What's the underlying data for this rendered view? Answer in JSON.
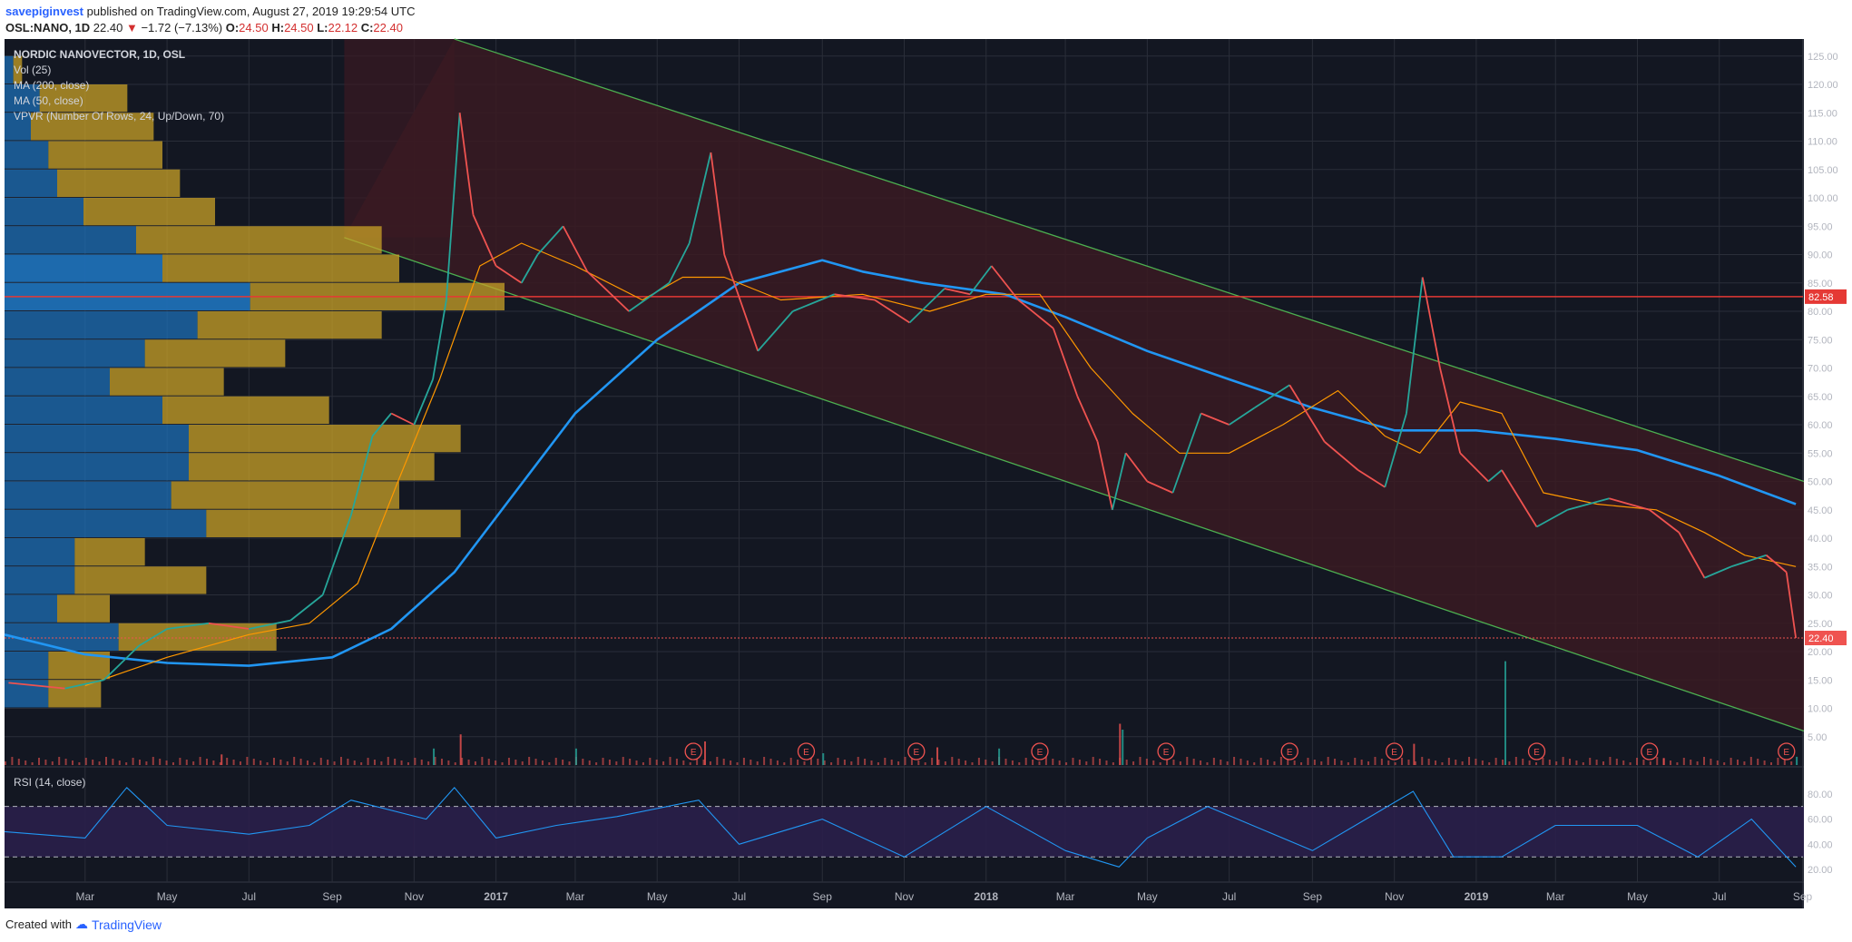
{
  "header": {
    "author": "savepiginvest",
    "published_text": "published on TradingView.com, August 27, 2019 19:29:54 UTC",
    "symbol": "OSL:NANO, 1D",
    "last": "22.40",
    "change": "−1.72 (−7.13%)",
    "o_label": "O:",
    "o_val": "24.50",
    "h_label": "H:",
    "h_val": "24.50",
    "l_label": "L:",
    "l_val": "22.12",
    "c_label": "C:",
    "c_val": "22.40"
  },
  "legend": {
    "title": "NORDIC NANOVECTOR, 1D, OSL",
    "items": [
      "Vol (25)",
      "MA (200, close)",
      "MA (50, close)",
      "VPVR (Number Of Rows, 24, Up/Down, 70)"
    ]
  },
  "rsi_label": "RSI (14, close)",
  "footer": {
    "created_with": "Created with",
    "brand": "TradingView"
  },
  "colors": {
    "background": "#131722",
    "grid": "#2a2e39",
    "channel_fill": "#3a1a22",
    "channel_line": "#4caf50",
    "ma200": "#2196f3",
    "ma50": "#ff9800",
    "up": "#26a69a",
    "down": "#ef5350",
    "support_line": "#e53935",
    "vpvr_up": "#1e6fb5",
    "vpvr_down": "#c9a227",
    "rsi_line": "#2196f3",
    "rsi_band": "#2a1f4a"
  },
  "chart_data": {
    "type": "line",
    "price_axis": {
      "ticks": [
        5,
        10,
        15,
        20,
        25,
        30,
        35,
        40,
        45,
        50,
        55,
        60,
        65,
        70,
        75,
        80,
        85,
        90,
        95,
        100,
        105,
        110,
        115,
        120,
        125
      ],
      "labels": [
        "5.00",
        "10.00",
        "15.00",
        "20.00",
        "25.00",
        "30.00",
        "35.00",
        "40.00",
        "45.00",
        "50.00",
        "55.00",
        "60.00",
        "65.00",
        "70.00",
        "75.00",
        "80.00",
        "85.00",
        "90.00",
        "95.00",
        "100.00",
        "105.00",
        "110.00",
        "115.00",
        "120.00",
        "125.00"
      ],
      "range": [
        0,
        128
      ]
    },
    "time_axis": {
      "labels": [
        "Mar",
        "May",
        "Jul",
        "Sep",
        "Nov",
        "2017",
        "Mar",
        "May",
        "Jul",
        "Sep",
        "Nov",
        "2018",
        "Mar",
        "May",
        "Jul",
        "Sep",
        "Nov",
        "2019",
        "Mar",
        "May",
        "Jul",
        "Sep"
      ],
      "dates": [
        "2016-03-01",
        "2016-05-01",
        "2016-07-01",
        "2016-09-01",
        "2016-11-01",
        "2017-01-01",
        "2017-03-01",
        "2017-05-01",
        "2017-07-01",
        "2017-09-01",
        "2017-11-01",
        "2018-01-01",
        "2018-03-01",
        "2018-05-01",
        "2018-07-01",
        "2018-09-01",
        "2018-11-01",
        "2019-01-01",
        "2019-03-01",
        "2019-05-01",
        "2019-07-01",
        "2019-09-01"
      ],
      "range": [
        "2016-01-01",
        "2019-09-02"
      ]
    },
    "price_close": {
      "dates": [
        "2016-01-04",
        "2016-02-15",
        "2016-03-15",
        "2016-04-10",
        "2016-05-01",
        "2016-06-01",
        "2016-07-01",
        "2016-08-01",
        "2016-08-25",
        "2016-09-15",
        "2016-10-01",
        "2016-10-15",
        "2016-11-01",
        "2016-11-15",
        "2016-11-25",
        "2016-12-05",
        "2016-12-15",
        "2017-01-01",
        "2017-01-20",
        "2017-02-01",
        "2017-02-20",
        "2017-03-10",
        "2017-04-10",
        "2017-05-10",
        "2017-05-25",
        "2017-06-10",
        "2017-06-20",
        "2017-07-15",
        "2017-08-10",
        "2017-09-10",
        "2017-10-10",
        "2017-11-05",
        "2017-12-01",
        "2017-12-20",
        "2018-01-05",
        "2018-01-25",
        "2018-02-20",
        "2018-03-10",
        "2018-03-25",
        "2018-04-05",
        "2018-04-15",
        "2018-05-01",
        "2018-05-20",
        "2018-06-10",
        "2018-07-01",
        "2018-07-20",
        "2018-08-15",
        "2018-09-10",
        "2018-10-05",
        "2018-10-25",
        "2018-11-10",
        "2018-11-22",
        "2018-12-05",
        "2018-12-20",
        "2019-01-10",
        "2019-01-20",
        "2019-02-15",
        "2019-03-10",
        "2019-04-10",
        "2019-05-10",
        "2019-06-01",
        "2019-06-20",
        "2019-07-10",
        "2019-08-05",
        "2019-08-20",
        "2019-08-27"
      ],
      "values": [
        14.5,
        13.5,
        15,
        21,
        24,
        25,
        24,
        25.5,
        30,
        44,
        58,
        62,
        60,
        68,
        82,
        115,
        97,
        88,
        85,
        90,
        95,
        87,
        80,
        85,
        92,
        108,
        90,
        73,
        80,
        83,
        82,
        78,
        84,
        83,
        88,
        82,
        77,
        65,
        57,
        45,
        55,
        50,
        48,
        62,
        60,
        63,
        67,
        57,
        52,
        49,
        62,
        86,
        70,
        55,
        50,
        52,
        42,
        45,
        47,
        45,
        41,
        33,
        35,
        37,
        34,
        22.4
      ]
    },
    "ma200": {
      "dates": [
        "2016-01-01",
        "2016-03-01",
        "2016-05-01",
        "2016-07-01",
        "2016-09-01",
        "2016-10-15",
        "2016-12-01",
        "2017-01-15",
        "2017-03-01",
        "2017-05-01",
        "2017-07-01",
        "2017-09-01",
        "2017-10-01",
        "2017-11-15",
        "2018-01-15",
        "2018-03-01",
        "2018-05-01",
        "2018-07-01",
        "2018-09-01",
        "2018-11-01",
        "2019-01-01",
        "2019-03-01",
        "2019-05-01",
        "2019-07-01",
        "2019-08-27"
      ],
      "values": [
        23,
        19.5,
        18,
        17.5,
        19,
        24,
        34,
        48,
        62,
        75,
        85,
        89,
        87,
        85,
        83,
        79,
        73,
        68,
        63,
        59,
        59,
        57.5,
        55.5,
        51,
        46
      ]
    },
    "ma50": {
      "dates": [
        "2016-03-01",
        "2016-05-01",
        "2016-07-01",
        "2016-08-15",
        "2016-09-20",
        "2016-10-20",
        "2016-11-20",
        "2016-12-20",
        "2017-01-20",
        "2017-03-01",
        "2017-04-20",
        "2017-05-20",
        "2017-06-20",
        "2017-08-01",
        "2017-10-01",
        "2017-11-20",
        "2018-01-01",
        "2018-02-10",
        "2018-03-20",
        "2018-04-20",
        "2018-05-25",
        "2018-07-01",
        "2018-08-10",
        "2018-09-20",
        "2018-10-25",
        "2018-11-20",
        "2018-12-20",
        "2019-01-20",
        "2019-02-20",
        "2019-04-01",
        "2019-05-15",
        "2019-06-20",
        "2019-07-20",
        "2019-08-27"
      ],
      "values": [
        14,
        19,
        23,
        25,
        32,
        50,
        68,
        88,
        92,
        88,
        82,
        86,
        86,
        82,
        83,
        80,
        83,
        83,
        70,
        62,
        55,
        55,
        60,
        66,
        58,
        55,
        64,
        62,
        48,
        46,
        45,
        41,
        37,
        35
      ]
    },
    "channel": {
      "upper": {
        "dates": [
          "2016-12-01",
          "2019-09-02"
        ],
        "values": [
          128,
          50
        ]
      },
      "lower": {
        "dates": [
          "2016-09-10",
          "2019-09-02"
        ],
        "values": [
          93,
          6
        ]
      }
    },
    "support_line": {
      "value": 82.58,
      "label": "82.58"
    },
    "last_price": {
      "value": 22.4,
      "label": "22.40"
    },
    "earnings_markers": [
      "2017-05-28",
      "2017-08-20",
      "2017-11-10",
      "2018-02-10",
      "2018-05-15",
      "2018-08-15",
      "2018-11-01",
      "2019-02-15",
      "2019-05-10",
      "2019-08-20"
    ],
    "earnings_label": "E",
    "vpvr": {
      "row_price_step": 5,
      "rows": [
        {
          "from": 125,
          "to": 130,
          "up": 0,
          "down": 0
        },
        {
          "from": 120,
          "to": 125,
          "up": 1,
          "down": 1
        },
        {
          "from": 115,
          "to": 120,
          "up": 4,
          "down": 10
        },
        {
          "from": 110,
          "to": 115,
          "up": 3,
          "down": 14
        },
        {
          "from": 105,
          "to": 110,
          "up": 5,
          "down": 13
        },
        {
          "from": 100,
          "to": 105,
          "up": 6,
          "down": 14
        },
        {
          "from": 95,
          "to": 100,
          "up": 9,
          "down": 15
        },
        {
          "from": 90,
          "to": 95,
          "up": 15,
          "down": 28
        },
        {
          "from": 85,
          "to": 90,
          "up": 18,
          "down": 27
        },
        {
          "from": 80,
          "to": 85,
          "up": 28,
          "down": 29
        },
        {
          "from": 75,
          "to": 80,
          "up": 22,
          "down": 21
        },
        {
          "from": 70,
          "to": 75,
          "up": 16,
          "down": 16
        },
        {
          "from": 65,
          "to": 70,
          "up": 12,
          "down": 13
        },
        {
          "from": 60,
          "to": 65,
          "up": 18,
          "down": 19
        },
        {
          "from": 55,
          "to": 60,
          "up": 21,
          "down": 31
        },
        {
          "from": 50,
          "to": 55,
          "up": 21,
          "down": 28
        },
        {
          "from": 45,
          "to": 50,
          "up": 19,
          "down": 26
        },
        {
          "from": 40,
          "to": 45,
          "up": 23,
          "down": 29
        },
        {
          "from": 35,
          "to": 40,
          "up": 8,
          "down": 8
        },
        {
          "from": 30,
          "to": 35,
          "up": 8,
          "down": 15
        },
        {
          "from": 25,
          "to": 30,
          "up": 6,
          "down": 6
        },
        {
          "from": 20,
          "to": 25,
          "up": 13,
          "down": 18
        },
        {
          "from": 15,
          "to": 20,
          "up": 5,
          "down": 7
        },
        {
          "from": 10,
          "to": 15,
          "up": 5,
          "down": 6
        }
      ]
    },
    "volume": {
      "dates": [
        "2016-06-10",
        "2016-11-15",
        "2016-12-05",
        "2017-03-01",
        "2017-06-05",
        "2017-09-01",
        "2017-11-25",
        "2018-01-10",
        "2018-04-10",
        "2018-04-12",
        "2018-11-15",
        "2019-01-22",
        "2019-05-20",
        "2019-08-27"
      ],
      "values": [
        9,
        14,
        26,
        14,
        20,
        10,
        15,
        14,
        35,
        30,
        18,
        88,
        6,
        7
      ]
    },
    "rsi": {
      "axis_ticks": [
        20,
        40,
        60,
        80
      ],
      "axis_labels": [
        "20.00",
        "40.00",
        "60.00",
        "80.00"
      ],
      "levels": [
        30,
        70
      ],
      "dates": [
        "2016-01-01",
        "2016-03-01",
        "2016-04-01",
        "2016-05-01",
        "2016-07-01",
        "2016-08-15",
        "2016-09-15",
        "2016-11-10",
        "2016-12-01",
        "2017-01-01",
        "2017-02-15",
        "2017-04-01",
        "2017-06-01",
        "2017-07-01",
        "2017-09-01",
        "2017-11-01",
        "2018-01-01",
        "2018-03-01",
        "2018-04-10",
        "2018-05-01",
        "2018-06-15",
        "2018-09-01",
        "2018-11-15",
        "2018-12-15",
        "2019-01-20",
        "2019-03-01",
        "2019-05-01",
        "2019-06-15",
        "2019-07-25",
        "2019-08-27"
      ],
      "values": [
        50,
        45,
        85,
        55,
        48,
        55,
        75,
        60,
        85,
        45,
        55,
        62,
        75,
        40,
        60,
        30,
        70,
        35,
        22,
        45,
        70,
        35,
        82,
        30,
        30,
        55,
        55,
        30,
        60,
        22
      ]
    }
  }
}
